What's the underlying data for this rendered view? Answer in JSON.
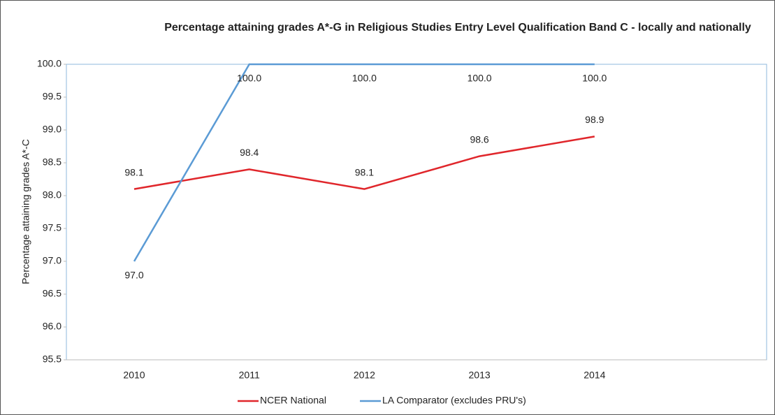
{
  "chart_data": {
    "type": "line",
    "title": "Percentage attaining grades A*-G in Religious Studies Entry Level Qualification Band C - locally and nationally",
    "y_label": "Percentage attaining grades A*-C",
    "categories": [
      "2010",
      "2011",
      "2012",
      "2013",
      "2014"
    ],
    "series": [
      {
        "name": "NCER National",
        "color": "#e0262b",
        "values": [
          98.1,
          98.4,
          98.1,
          98.6,
          98.9
        ],
        "value_labels": [
          "98.1",
          "98.4",
          "98.1",
          "98.6",
          "98.9"
        ]
      },
      {
        "name": "LA Comparator (excludes PRU's)",
        "color": "#5b9bd5",
        "values": [
          97.0,
          100.0,
          100.0,
          100.0,
          100.0
        ],
        "value_labels": [
          "97.0",
          "100.0",
          "100.0",
          "100.0",
          "100.0"
        ]
      }
    ],
    "ylim": [
      95.5,
      100
    ],
    "yticks": [
      {
        "value": 95.5,
        "label": "95.5"
      },
      {
        "value": 96,
        "label": "96.0"
      },
      {
        "value": 96.5,
        "label": "96.5"
      },
      {
        "value": 97,
        "label": "97.0"
      },
      {
        "value": 97.5,
        "label": "97.5"
      },
      {
        "value": 98,
        "label": "98.0"
      },
      {
        "value": 98.5,
        "label": "98.5"
      },
      {
        "value": 99,
        "label": "99.0"
      },
      {
        "value": 99.5,
        "label": "99.5"
      },
      {
        "value": 100,
        "label": "100.0"
      }
    ]
  }
}
